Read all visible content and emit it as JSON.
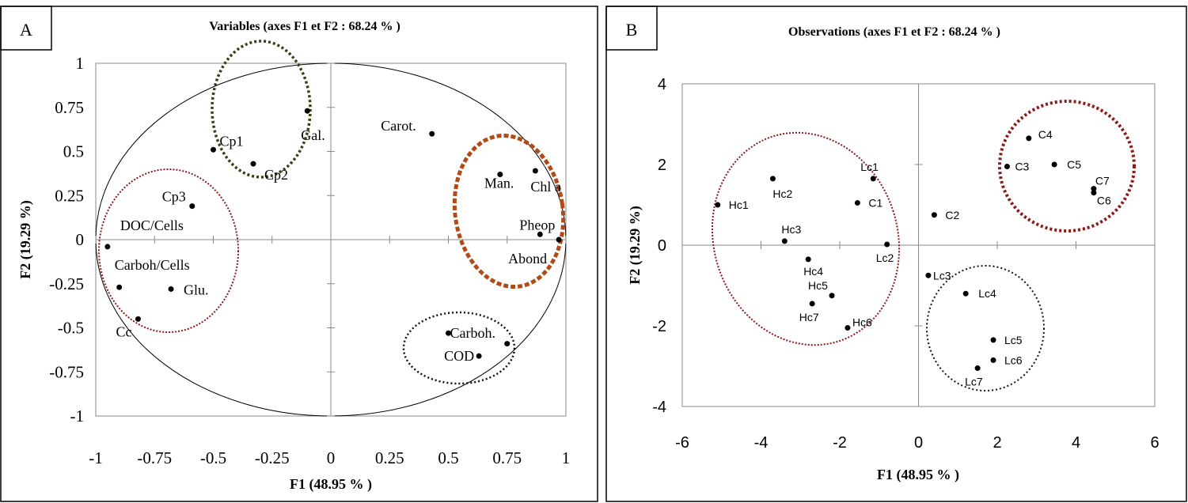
{
  "chart_data": [
    {
      "type": "scatter",
      "panel_letter": "A",
      "title": "Variables (axes F1 et F2 : 68.24 % )",
      "xlabel": "F1 (48.95 % )",
      "ylabel": "F2 (19.29 %)",
      "xlim": [
        -1,
        1
      ],
      "ylim": [
        -1,
        1
      ],
      "xticks": [
        "-1",
        "-0.75",
        "-0.5",
        "-0.25",
        "0",
        "0.25",
        "0.5",
        "0.75",
        "1"
      ],
      "yticks": [
        "1",
        "0.75",
        "0.5",
        "0.25",
        "0",
        "-0.25",
        "-0.5",
        "-0.75",
        "-1"
      ],
      "correlation_circle": true,
      "points": [
        {
          "label": "Gal.",
          "x": -0.1,
          "y": 0.73
        },
        {
          "label": "Cp1",
          "x": -0.5,
          "y": 0.51
        },
        {
          "label": "Cp2",
          "x": -0.33,
          "y": 0.43
        },
        {
          "label": "Carot.",
          "x": 0.43,
          "y": 0.6
        },
        {
          "label": "Man.",
          "x": 0.72,
          "y": 0.37
        },
        {
          "label": "Chl a",
          "x": 0.87,
          "y": 0.39
        },
        {
          "label": "Pheop",
          "x": 0.89,
          "y": 0.03
        },
        {
          "label": "Abond",
          "x": 0.97,
          "y": 0.0
        },
        {
          "label": "Cp3",
          "x": -0.59,
          "y": 0.19
        },
        {
          "label": "DOC/Cells",
          "x": -0.95,
          "y": -0.04
        },
        {
          "label": "Carboh/Cells",
          "x": -0.9,
          "y": -0.27
        },
        {
          "label": "Glu.",
          "x": -0.68,
          "y": -0.28
        },
        {
          "label": "Cc",
          "x": -0.82,
          "y": -0.45
        },
        {
          "label": "Carboh.",
          "x": 0.5,
          "y": -0.53
        },
        {
          "label": "COD",
          "x": 0.63,
          "y": -0.66
        },
        {
          "label": "",
          "x": 0.75,
          "y": -0.59
        }
      ],
      "groups": [
        {
          "color": "#3d3d12",
          "points": [
            "Gal.",
            "Cp1",
            "Cp2"
          ]
        },
        {
          "color": "#b14a16",
          "points": [
            "Man.",
            "Chl a",
            "Pheop",
            "Abond"
          ]
        },
        {
          "color": "#8b1a1a",
          "points": [
            "Cp3",
            "DOC/Cells",
            "Carboh/Cells",
            "Glu.",
            "Cc"
          ]
        },
        {
          "color": "#111111",
          "points": [
            "Carboh.",
            "COD"
          ]
        }
      ]
    },
    {
      "type": "scatter",
      "panel_letter": "B",
      "title": "Observations (axes F1 et F2 : 68.24 % )",
      "xlabel": "F1 (48.95 % )",
      "ylabel": "F2 (19.29 %)",
      "xlim": [
        -6,
        6
      ],
      "ylim": [
        -4,
        4
      ],
      "xticks": [
        "-6",
        "-4",
        "-2",
        "0",
        "2",
        "4",
        "6"
      ],
      "yticks": [
        "4",
        "2",
        "0",
        "-2",
        "-4"
      ],
      "points": [
        {
          "label": "Hc1",
          "x": -5.1,
          "y": 1.0
        },
        {
          "label": "Hc2",
          "x": -3.7,
          "y": 1.65
        },
        {
          "label": "Hc3",
          "x": -3.4,
          "y": 0.1
        },
        {
          "label": "Hc4",
          "x": -2.8,
          "y": -0.35
        },
        {
          "label": "Hc5",
          "x": -2.2,
          "y": -1.25
        },
        {
          "label": "Hc6",
          "x": -1.8,
          "y": -2.05
        },
        {
          "label": "Hc7",
          "x": -2.7,
          "y": -1.45
        },
        {
          "label": "Lc1",
          "x": -1.15,
          "y": 1.65
        },
        {
          "label": "C1",
          "x": -1.55,
          "y": 1.05
        },
        {
          "label": "Lc2",
          "x": -0.8,
          "y": 0.02
        },
        {
          "label": "C2",
          "x": 0.4,
          "y": 0.75
        },
        {
          "label": "Lc3",
          "x": 0.25,
          "y": -0.75
        },
        {
          "label": "Lc4",
          "x": 1.2,
          "y": -1.2
        },
        {
          "label": "Lc5",
          "x": 1.9,
          "y": -2.35
        },
        {
          "label": "Lc6",
          "x": 1.9,
          "y": -2.85
        },
        {
          "label": "Lc7",
          "x": 1.5,
          "y": -3.05
        },
        {
          "label": "C3",
          "x": 2.25,
          "y": 1.95
        },
        {
          "label": "C4",
          "x": 2.8,
          "y": 2.65
        },
        {
          "label": "C5",
          "x": 3.45,
          "y": 2.0
        },
        {
          "label": "C6",
          "x": 4.45,
          "y": 1.3
        },
        {
          "label": "C7",
          "x": 4.45,
          "y": 1.4
        }
      ],
      "groups": [
        {
          "color": "#8b1a1a",
          "points": [
            "Hc1",
            "Hc2",
            "Hc3",
            "Hc4",
            "Hc5",
            "Hc6",
            "Hc7",
            "Lc1",
            "C1",
            "Lc2"
          ]
        },
        {
          "color": "#8b1a1a",
          "points": [
            "C3",
            "C4",
            "C5",
            "C6",
            "C7"
          ]
        },
        {
          "color": "#111111",
          "points": [
            "Lc3",
            "Lc4",
            "Lc5",
            "Lc6",
            "Lc7"
          ]
        }
      ]
    }
  ]
}
